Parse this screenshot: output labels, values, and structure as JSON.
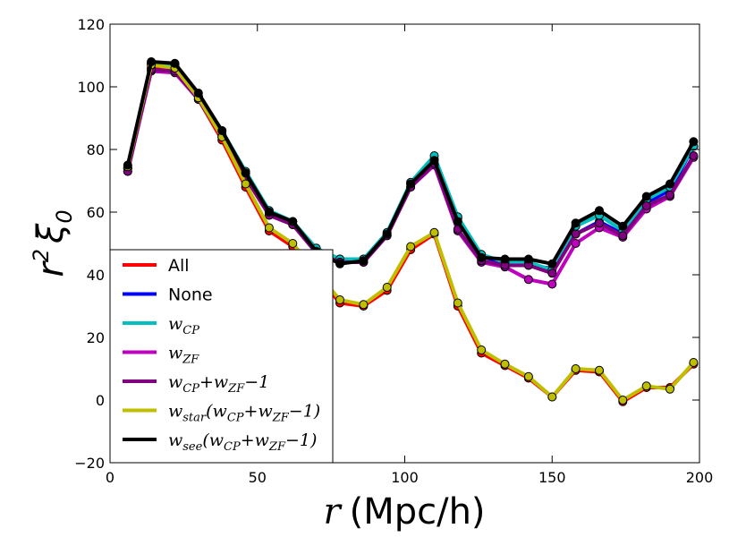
{
  "chart_data": {
    "type": "line",
    "xlabel": "r (Mpc/h)",
    "ylabel": "r^2 ξ_0",
    "xlim": [
      0,
      200
    ],
    "ylim": [
      -20,
      120
    ],
    "xticks": [
      0,
      50,
      100,
      150,
      200
    ],
    "yticks": [
      -20,
      0,
      20,
      40,
      60,
      80,
      100,
      120
    ],
    "xtick_labels": [
      "0",
      "50",
      "100",
      "150",
      "200"
    ],
    "ytick_labels": [
      "−20",
      "0",
      "20",
      "40",
      "60",
      "80",
      "100",
      "120"
    ],
    "grid": false,
    "legend_position": "lower-left",
    "x": [
      6,
      14,
      22,
      30,
      38,
      46,
      54,
      62,
      70,
      78,
      86,
      94,
      102,
      110,
      118,
      126,
      134,
      142,
      150,
      158,
      166,
      174,
      182,
      190,
      198
    ],
    "series": [
      {
        "name": "All",
        "color": "#ff0000",
        "values": [
          74,
          106,
          105,
          96,
          83,
          68,
          54,
          49,
          40,
          31,
          30,
          35,
          48,
          53,
          30,
          15,
          11,
          7,
          1,
          9.5,
          9,
          -0.5,
          4,
          4,
          11.5
        ]
      },
      {
        "name": "None",
        "color": "#0000ff",
        "values": [
          74,
          107.5,
          107,
          97,
          85,
          72,
          60,
          56,
          48,
          45,
          45,
          53,
          69,
          77,
          58,
          46,
          43.5,
          43,
          42,
          53,
          57,
          53,
          63,
          67,
          81
        ]
      },
      {
        "name": "w_CP",
        "color": "#00bfbf",
        "values": [
          74,
          107.5,
          107,
          97,
          86,
          73,
          60.5,
          57,
          48.5,
          45,
          45,
          53.5,
          69.5,
          78,
          58.5,
          46.5,
          44,
          44,
          41.5,
          55.5,
          59,
          54,
          64,
          68,
          81
        ]
      },
      {
        "name": "w_ZF",
        "color": "#bf00bf",
        "values": [
          73,
          105,
          104.5,
          96,
          84,
          71,
          59,
          56,
          47,
          44,
          44,
          52.5,
          68,
          75,
          54,
          44,
          42.5,
          38.5,
          37,
          50,
          55,
          52,
          61,
          65,
          77.5
        ]
      },
      {
        "name": "w_CP+w_ZF−1",
        "color": "#800080",
        "values": [
          73,
          105.5,
          105,
          96,
          84,
          71,
          59,
          56,
          47,
          44,
          44,
          52.5,
          68,
          75.5,
          54.5,
          44.5,
          43,
          43,
          40.5,
          53,
          56.5,
          52.5,
          62,
          65.5,
          78
        ]
      },
      {
        "name": "w_star(w_CP+w_ZF−1)",
        "color": "#bfbf00",
        "values": [
          74.5,
          107,
          106,
          96.5,
          84,
          69,
          55,
          50,
          41,
          32,
          30.5,
          36,
          49,
          53.5,
          31,
          16,
          11.5,
          7.5,
          1,
          10,
          9.5,
          0,
          4.5,
          3.5,
          12
        ]
      },
      {
        "name": "w_see(w_CP+w_ZF−1)",
        "color": "#000000",
        "values": [
          75,
          108,
          107.5,
          98,
          86,
          72.5,
          60,
          57,
          47.5,
          43.5,
          44.5,
          53,
          69,
          76.5,
          57,
          45.5,
          45,
          45,
          43.5,
          56.5,
          60.5,
          55.5,
          65,
          69,
          82.5
        ]
      }
    ]
  }
}
